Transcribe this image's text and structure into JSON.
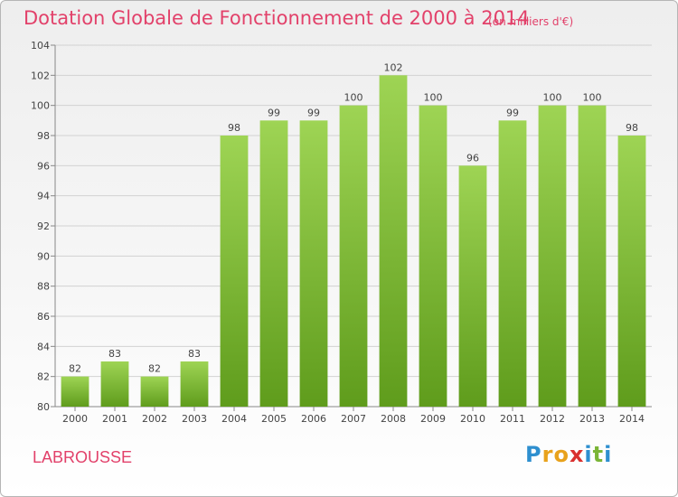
{
  "chart_data": {
    "type": "bar",
    "title": "Dotation Globale de Fonctionnement de 2000 à 2014",
    "subtitle": "(en milliers d'€)",
    "categories": [
      "2000",
      "2001",
      "2002",
      "2003",
      "2004",
      "2005",
      "2006",
      "2007",
      "2008",
      "2009",
      "2010",
      "2011",
      "2012",
      "2013",
      "2014"
    ],
    "values": [
      82,
      83,
      82,
      83,
      98,
      99,
      99,
      100,
      102,
      100,
      96,
      99,
      100,
      100,
      98
    ],
    "ylim": [
      80,
      104
    ],
    "yticks": [
      80,
      82,
      84,
      86,
      88,
      90,
      92,
      94,
      96,
      98,
      100,
      102,
      104
    ],
    "grid": true,
    "bar_color": "#7fc03a"
  },
  "commune": "LABROUSSE",
  "logo": {
    "letters": [
      "P",
      "r",
      "o",
      "x",
      "i",
      "t",
      "i"
    ],
    "colors": [
      "#2e8fcf",
      "#e8a21c",
      "#e8a21c",
      "#d9302f",
      "#2e8fcf",
      "#7ab536",
      "#2e8fcf"
    ]
  }
}
